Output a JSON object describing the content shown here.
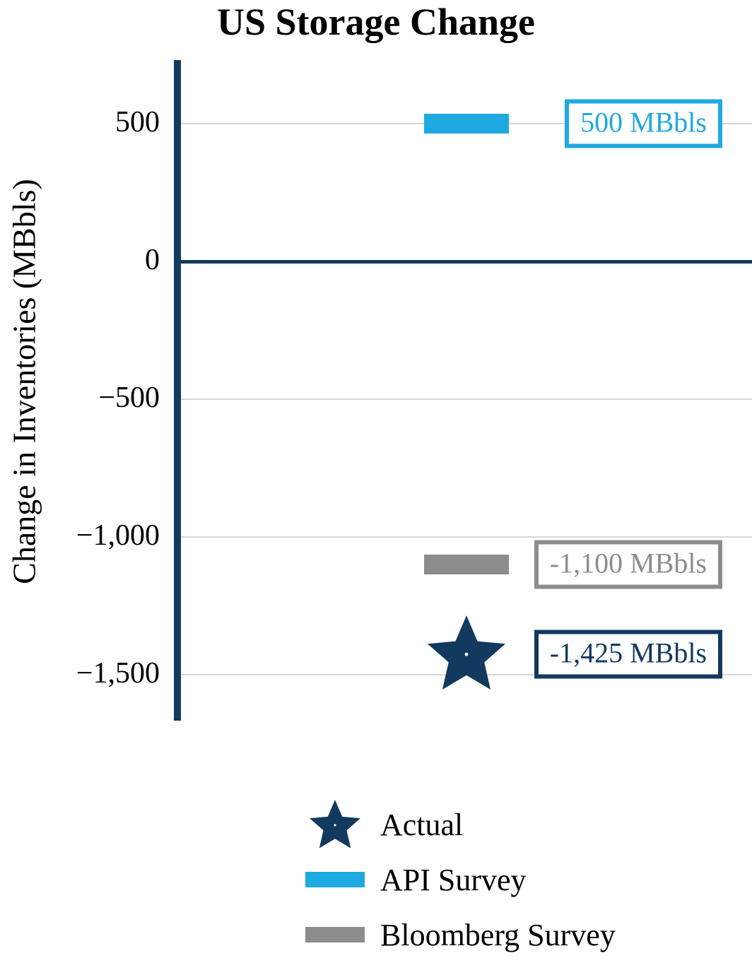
{
  "title": "US Storage Change",
  "colors": {
    "navy": "#12395E",
    "cyan": "#1FA9E1",
    "gray": "#8C8C8C",
    "gridline": "#D6D6D6"
  },
  "chart_data": {
    "type": "scatter",
    "title": "US Storage Change",
    "xlabel": "",
    "ylabel": "Change in Inventories (MBbls)",
    "ylim": [
      -1660,
      730
    ],
    "grid": true,
    "legend_position": "bottom-center",
    "yticks": [
      {
        "value": 500,
        "label": "500"
      },
      {
        "value": 0,
        "label": "0"
      },
      {
        "value": -500,
        "label": "−500"
      },
      {
        "value": -1000,
        "label": "−1,000"
      },
      {
        "value": -1500,
        "label": "−1,500"
      }
    ],
    "series": [
      {
        "name": "API Survey",
        "marker": "bar",
        "color": "#1FA9E1",
        "value": 500,
        "annotation": "500 MBbls"
      },
      {
        "name": "Bloomberg Survey",
        "marker": "bar",
        "color": "#8C8C8C",
        "value": -1100,
        "annotation": "-1,100 MBbls"
      },
      {
        "name": "Actual",
        "marker": "star",
        "color": "#12395E",
        "value": -1425,
        "annotation": "-1,425 MBbls"
      }
    ]
  },
  "legend": {
    "items": [
      {
        "label": "Actual",
        "marker": "star",
        "color": "#12395E"
      },
      {
        "label": "API Survey",
        "marker": "bar",
        "color": "#1FA9E1"
      },
      {
        "label": "Bloomberg Survey",
        "marker": "bar",
        "color": "#8C8C8C"
      }
    ]
  }
}
